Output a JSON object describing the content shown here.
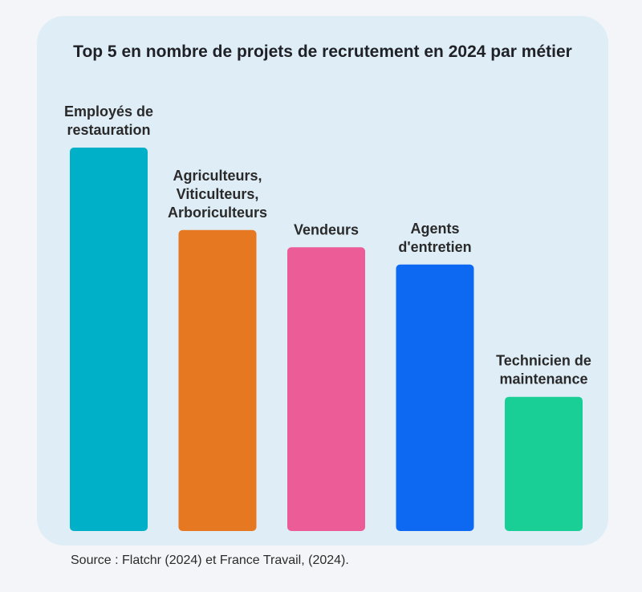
{
  "chart_data": {
    "type": "bar",
    "title": "Top 5 en nombre de projets de recrutement en 2024 par métier",
    "categories": [
      [
        "Employés de",
        "restauration"
      ],
      [
        "Agriculteurs,",
        "Viticulteurs,",
        "Arboriculteurs"
      ],
      [
        "Vendeurs"
      ],
      [
        "Agents",
        "d'entretien"
      ],
      [
        "Technicien de",
        "maintenance"
      ]
    ],
    "values": [
      100,
      78.5,
      74,
      69.5,
      35
    ],
    "colors": [
      "#00afc8",
      "#e67821",
      "#ec5c97",
      "#0d69f2",
      "#19cf95"
    ],
    "xlabel": "",
    "ylabel": "",
    "ylim": [
      0,
      100
    ],
    "grid": false,
    "legend": "none"
  },
  "source": "Source : Flatchr (2024) et France Travail, (2024)."
}
